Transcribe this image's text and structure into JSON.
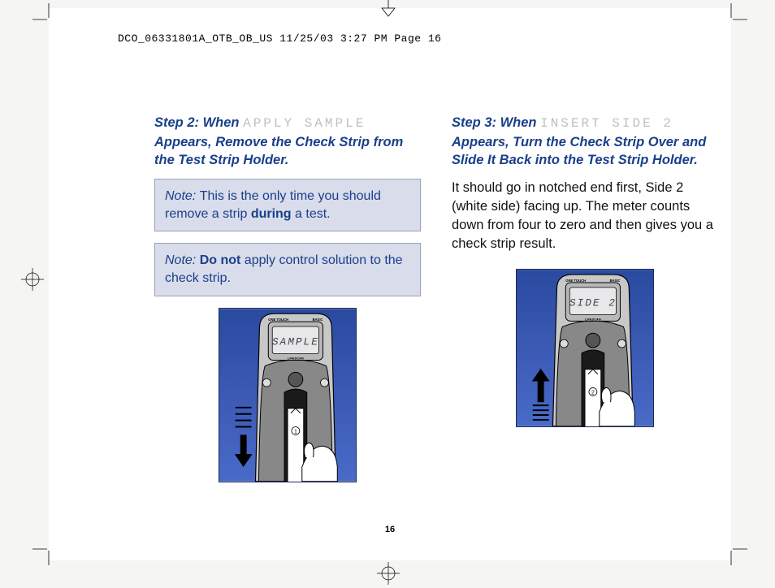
{
  "header": "DCO_06331801A_OTB_OB_US  11/25/03  3:27 PM  Page 16",
  "page_number": "16",
  "left": {
    "step_prefix": "Step 2: When ",
    "lcd": "APPLY SAMPLE",
    "step_suffix": " Appears, Remove the Check Strip from the Test Strip Holder.",
    "note1_label": "Note: ",
    "note1_a": "This is the only time you should remove a strip ",
    "note1_bold": "during",
    "note1_b": " a test.",
    "note2_label": "Note: ",
    "note2_bold": "Do not",
    "note2_rest": " apply control solution to the check strip.",
    "device": {
      "screen": "SAMPLE",
      "brand_left": "ONE TOUCH",
      "brand_right": "BASIC",
      "brand_bottom": "LIFESCAN",
      "strip_label": "1",
      "arrow_dir": "down",
      "bg_top": "#2a4aa0",
      "bg_bottom": "#4a6ac8",
      "body_outer": "#c8c8c8",
      "body_inner": "#888888",
      "screen_bg": "#e8e8ea"
    }
  },
  "right": {
    "step_prefix": "Step 3: When ",
    "lcd": "INSERT SIDE 2",
    "step_suffix": " Appears, Turn the Check Strip Over and Slide It Back into the Test Strip Holder.",
    "body": "It should go in notched end first, Side 2 (white side) facing up. The meter counts down from four to zero and then gives you a check strip result.",
    "device": {
      "screen": "SIDE 2",
      "brand_left": "ONE TOUCH",
      "brand_right": "BASIC",
      "brand_bottom": "LIFESCAN",
      "strip_label": "2",
      "arrow_dir": "up",
      "bg_top": "#2a4aa0",
      "bg_bottom": "#4a6ac8",
      "body_outer": "#c8c8c8",
      "body_inner": "#888888",
      "screen_bg": "#e8e8ea"
    }
  },
  "colors": {
    "heading": "#1a3f8a",
    "note_bg": "#d8dceb",
    "note_border": "#9aa3b0"
  }
}
